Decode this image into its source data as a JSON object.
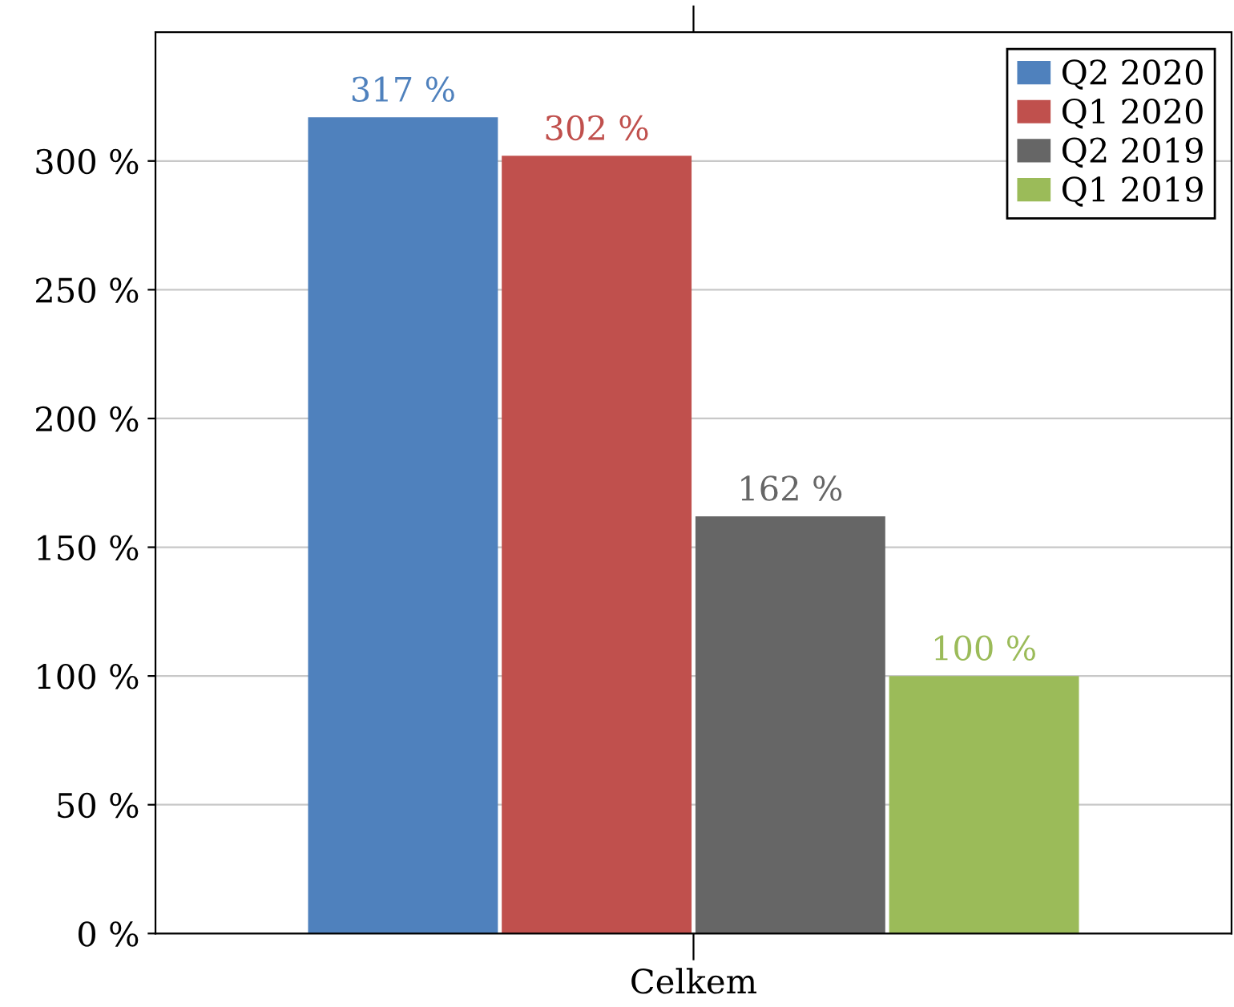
{
  "chart_data": {
    "type": "bar",
    "categories": [
      "Celkem"
    ],
    "series": [
      {
        "name": "Q2 2020",
        "color": "#4f81bd",
        "values": [
          317
        ],
        "value_labels": [
          "317 %"
        ]
      },
      {
        "name": "Q1 2020",
        "color": "#c0504d",
        "values": [
          302
        ],
        "value_labels": [
          "302 %"
        ]
      },
      {
        "name": "Q2 2019",
        "color": "#666666",
        "values": [
          162
        ],
        "value_labels": [
          "162 %"
        ]
      },
      {
        "name": "Q1 2019",
        "color": "#9bbb59",
        "values": [
          100
        ],
        "value_labels": [
          "100 %"
        ]
      }
    ],
    "ylim": [
      0,
      350
    ],
    "yticks": [
      {
        "value": 0,
        "label": "0 %"
      },
      {
        "value": 50,
        "label": "50 %"
      },
      {
        "value": 100,
        "label": "100 %"
      },
      {
        "value": 150,
        "label": "150 %"
      },
      {
        "value": 200,
        "label": "200 %"
      },
      {
        "value": 250,
        "label": "250 %"
      },
      {
        "value": 300,
        "label": "300 %"
      }
    ],
    "grid": "y",
    "legend": "top right"
  }
}
